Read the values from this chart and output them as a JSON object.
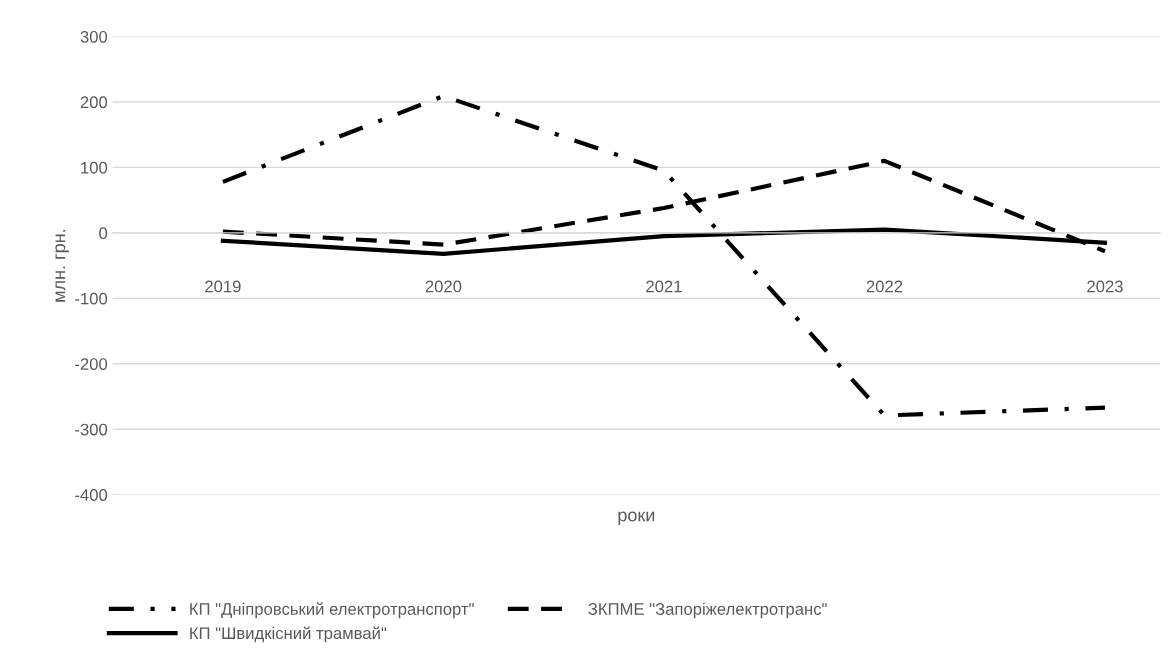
{
  "chart_data": {
    "type": "line",
    "xlabel": "роки",
    "ylabel": "млн. грн.",
    "categories": [
      "2019",
      "2020",
      "2021",
      "2022",
      "2023"
    ],
    "series": [
      {
        "name": "КП \"Дніпровський електротранспорт\"",
        "color": "#000000",
        "line_style": "dashdot",
        "values": [
          78,
          209,
          95,
          -279,
          -267
        ]
      },
      {
        "name": "ЗКПМЕ \"Запоріжелектротранс\"",
        "color": "#000000",
        "line_style": "dashed",
        "values": [
          2,
          -18,
          38,
          110,
          -28
        ]
      },
      {
        "name": "КП \"Швидкісний трамвай\"",
        "color": "#000000",
        "line_style": "solid",
        "values": [
          -12,
          -32,
          -5,
          5,
          -15
        ]
      }
    ],
    "ylim": [
      -400,
      300
    ],
    "yticks": [
      -400,
      -300,
      -200,
      -100,
      0,
      100,
      200,
      300
    ],
    "grid": "y",
    "legend": "bottom",
    "marker": "none"
  }
}
